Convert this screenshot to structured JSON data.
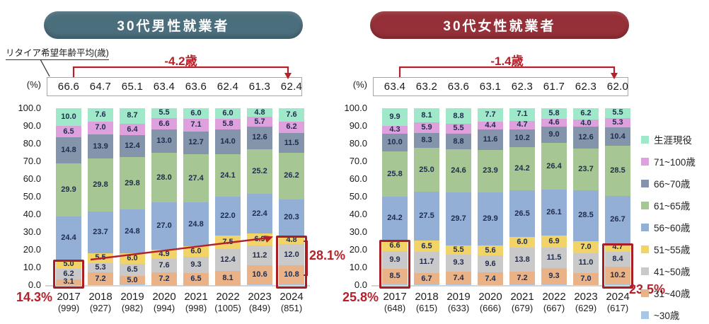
{
  "accent_colors": {
    "annotation_red": "#b5212b",
    "highlight_box_red": "#a91d24",
    "male_title_bg": "#4b6e7d",
    "female_title_bg": "#953038"
  },
  "y_axis": {
    "unit": "(%)",
    "ticks": [
      "100.0",
      "90.0",
      "80.0",
      "70.0",
      "60.0",
      "50.0",
      "40.0",
      "30.0",
      "20.0",
      "10.0",
      "0.0"
    ]
  },
  "legend": {
    "items": [
      {
        "label": "生涯現役",
        "color": "#9fe9ca"
      },
      {
        "label": "71~100歳",
        "color": "#dfa0de"
      },
      {
        "label": "66~70歳",
        "color": "#8494ab"
      },
      {
        "label": "61~65歳",
        "color": "#a6c794"
      },
      {
        "label": "56~60歳",
        "color": "#93afd6"
      },
      {
        "label": "51~55歳",
        "color": "#f1d368"
      },
      {
        "label": "41~50歳",
        "color": "#c9c9c9"
      },
      {
        "label": "31~40歳",
        "color": "#eab287"
      },
      {
        "label": "~30歳",
        "color": "#a9c6e2"
      }
    ]
  },
  "chart_data": [
    {
      "type": "bar",
      "stacked": true,
      "title": "30代男性就業者",
      "title_bg": "#4b6e7d",
      "retire_age_label": "リタイア希望年齢平均(歳)",
      "delta_label": "-4.2歳",
      "avg_retire_ages": [
        "66.6",
        "64.7",
        "65.1",
        "63.4",
        "63.6",
        "62.4",
        "61.3",
        "62.4"
      ],
      "categories": [
        "2017",
        "2018",
        "2019",
        "2020",
        "2021",
        "2022",
        "2023",
        "2024"
      ],
      "sample_sizes": [
        "(999)",
        "(927)",
        "(982)",
        "(994)",
        "(998)",
        "(1005)",
        "(849)",
        "(851)"
      ],
      "ylim": [
        0,
        100
      ],
      "series": [
        {
          "name": "生涯現役",
          "values": [
            10.0,
            7.6,
            8.7,
            5.5,
            6.0,
            6.0,
            4.8,
            7.6
          ]
        },
        {
          "name": "71~100歳",
          "values": [
            6.5,
            7.0,
            6.4,
            6.6,
            7.1,
            5.8,
            5.7,
            6.2
          ]
        },
        {
          "name": "66~70歳",
          "values": [
            14.8,
            13.9,
            12.4,
            13.0,
            12.7,
            14.0,
            12.6,
            11.5
          ]
        },
        {
          "name": "61~65歳",
          "values": [
            29.9,
            29.8,
            29.8,
            28.0,
            27.4,
            24.1,
            25.2,
            26.2
          ]
        },
        {
          "name": "56~60歳",
          "values": [
            24.4,
            23.7,
            24.8,
            27.0,
            24.8,
            22.0,
            22.4,
            20.3
          ]
        },
        {
          "name": "51~55歳",
          "values": [
            5.0,
            5.5,
            6.0,
            4.9,
            6.0,
            7.5,
            6.9,
            4.8
          ]
        },
        {
          "name": "41~50歳",
          "values": [
            6.2,
            5.3,
            6.5,
            7.6,
            9.3,
            12.4,
            11.2,
            12.0
          ]
        },
        {
          "name": "31~40歳",
          "values": [
            3.1,
            7.2,
            5.0,
            7.2,
            6.5,
            8.1,
            10.6,
            10.8
          ]
        }
      ],
      "highlights": [
        {
          "column": 0,
          "label": "14.3%",
          "label_position": "bottom-left"
        },
        {
          "column": 7,
          "label": "28.1%",
          "label_position": "right",
          "sum_bracket": true
        }
      ],
      "trend_arrow": true
    },
    {
      "type": "bar",
      "stacked": true,
      "title": "30代女性就業者",
      "title_bg": "#953038",
      "delta_label": "-1.4歳",
      "avg_retire_ages": [
        "63.4",
        "63.2",
        "63.6",
        "63.1",
        "62.3",
        "61.7",
        "62.3",
        "62.0"
      ],
      "categories": [
        "2017",
        "2018",
        "2019",
        "2020",
        "2021",
        "2022",
        "2023",
        "2024"
      ],
      "sample_sizes": [
        "(648)",
        "(615)",
        "(633)",
        "(666)",
        "(679)",
        "(667)",
        "(629)",
        "(617)"
      ],
      "ylim": [
        0,
        100
      ],
      "series": [
        {
          "name": "生涯現役",
          "values": [
            9.9,
            8.1,
            8.8,
            7.7,
            7.1,
            5.8,
            6.2,
            5.5
          ]
        },
        {
          "name": "71~100歳",
          "values": [
            4.3,
            5.9,
            5.5,
            4.4,
            4.7,
            4.6,
            4.0,
            5.3
          ]
        },
        {
          "name": "66~70歳",
          "values": [
            10.0,
            8.3,
            8.8,
            11.6,
            10.2,
            9.0,
            12.6,
            10.4
          ]
        },
        {
          "name": "61~65歳",
          "values": [
            25.8,
            25.0,
            24.6,
            23.9,
            24.2,
            26.4,
            23.7,
            28.5
          ]
        },
        {
          "name": "56~60歳",
          "values": [
            24.2,
            27.5,
            29.7,
            29.9,
            26.5,
            26.1,
            28.5,
            26.7
          ]
        },
        {
          "name": "51~55歳",
          "values": [
            6.6,
            6.5,
            5.5,
            5.6,
            6.0,
            6.9,
            7.0,
            4.7
          ]
        },
        {
          "name": "41~50歳",
          "values": [
            9.9,
            11.7,
            9.3,
            9.6,
            13.8,
            11.5,
            11.0,
            8.4
          ]
        },
        {
          "name": "31~40歳",
          "values": [
            8.5,
            6.7,
            7.4,
            7.4,
            7.2,
            9.3,
            7.0,
            10.2
          ]
        }
      ],
      "highlights": [
        {
          "column": 0,
          "label": "25.8%",
          "label_position": "bottom-left"
        },
        {
          "column": 7,
          "label": "23.5%",
          "label_position": "below"
        }
      ],
      "trend_arrow": false
    }
  ]
}
